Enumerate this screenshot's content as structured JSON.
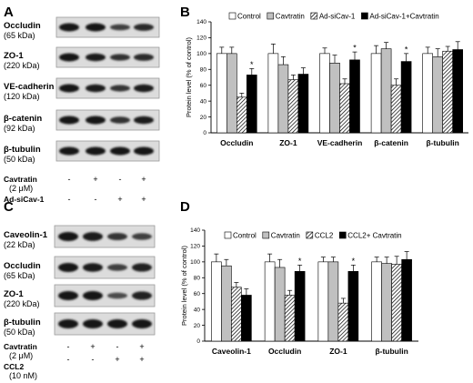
{
  "panels": {
    "A": {
      "label": "A",
      "blots": [
        {
          "name": "Occludin",
          "size": "(65 kDa)",
          "bands": [
            1.0,
            0.98,
            0.6,
            0.8
          ]
        },
        {
          "name": "ZO-1",
          "size": "(220 kDa)",
          "bands": [
            1.0,
            0.9,
            0.72,
            0.78
          ]
        },
        {
          "name": "VE-cadherin",
          "size": "(120 kDa)",
          "bands": [
            1.0,
            0.9,
            0.7,
            0.9
          ]
        },
        {
          "name": "β-catenin",
          "size": "(92 kDa)",
          "bands": [
            1.0,
            1.0,
            0.75,
            0.9
          ]
        },
        {
          "name": "β-tubulin",
          "size": "(50 kDa)",
          "bands": [
            1.0,
            1.0,
            1.0,
            1.0
          ]
        }
      ],
      "treatments": [
        {
          "name": "Cavtratin",
          "sub": "(2 μM)",
          "signs": [
            "-",
            "+",
            "-",
            "+"
          ]
        },
        {
          "name": "Ad-siCav-1",
          "sub": "",
          "signs": [
            "-",
            "-",
            "+",
            "+"
          ]
        }
      ]
    },
    "C": {
      "label": "C",
      "blots": [
        {
          "name": "Caveolin-1",
          "size": "(22 kDa)",
          "bands": [
            1.0,
            0.95,
            0.7,
            0.6
          ]
        },
        {
          "name": "Occludin",
          "size": "(65 kDa)",
          "bands": [
            1.0,
            0.93,
            0.6,
            0.88
          ]
        },
        {
          "name": "ZO-1",
          "size": "(220 kDa)",
          "bands": [
            1.0,
            1.0,
            0.5,
            0.88
          ]
        },
        {
          "name": "β-tubulin",
          "size": "(50 kDa)",
          "bands": [
            1.0,
            1.0,
            1.0,
            1.0
          ]
        }
      ],
      "treatments": [
        {
          "name": "Cavtratin",
          "sub": "(2 μM)",
          "signs": [
            "-",
            "+",
            "-",
            "+"
          ]
        },
        {
          "name": "CCL2",
          "sub": "(10 nM)",
          "signs": [
            "-",
            "-",
            "+",
            "+"
          ]
        }
      ]
    }
  },
  "chart_data": [
    {
      "panel": "B",
      "type": "bar",
      "ylabel": "Protein level (% of control)",
      "ylim": [
        0,
        140
      ],
      "yticks": [
        "0",
        "20",
        "40",
        "60",
        "80",
        "100",
        "120",
        "140"
      ],
      "categories": [
        "Occludin",
        "ZO-1",
        "VE-cadherin",
        "β-catenin",
        "β-tubulin"
      ],
      "legend_position": "top",
      "series": [
        {
          "name": "Control",
          "color": "#ffffff",
          "pattern": "solid",
          "values": [
            100,
            100,
            100,
            100,
            100
          ],
          "errors": [
            8,
            12,
            7,
            10,
            8
          ]
        },
        {
          "name": "Cavtratin",
          "color": "#c0c0c0",
          "pattern": "solid",
          "values": [
            100,
            86,
            88,
            106,
            96
          ],
          "errors": [
            8,
            10,
            10,
            8,
            10
          ]
        },
        {
          "name": "Ad-siCav-1",
          "color": "#ffffff",
          "pattern": "hatch",
          "values": [
            45,
            67,
            62,
            60,
            103
          ],
          "errors": [
            5,
            6,
            6,
            8,
            6
          ]
        },
        {
          "name": "Ad-siCav-1+Cavtratin",
          "color": "#000000",
          "pattern": "solid",
          "values": [
            73,
            74,
            92,
            90,
            105
          ],
          "errors": [
            8,
            8,
            10,
            10,
            10
          ]
        }
      ],
      "annotations": [
        {
          "text": "*",
          "category": "Occludin",
          "series": "Ad-siCav-1+Cavtratin"
        },
        {
          "text": "*",
          "category": "VE-cadherin",
          "series": "Ad-siCav-1+Cavtratin"
        },
        {
          "text": "*",
          "category": "β-catenin",
          "series": "Ad-siCav-1+Cavtratin"
        }
      ]
    },
    {
      "panel": "D",
      "type": "bar",
      "ylabel": "Protein level (% of control)",
      "ylim": [
        0,
        140
      ],
      "yticks": [
        "0",
        "20",
        "40",
        "60",
        "80",
        "100",
        "120",
        "140"
      ],
      "categories": [
        "Caveolin-1",
        "Occludin",
        "ZO-1",
        "β-tubulin"
      ],
      "legend_position": "top",
      "series": [
        {
          "name": "Control",
          "color": "#ffffff",
          "pattern": "solid",
          "values": [
            100,
            100,
            100,
            100
          ],
          "errors": [
            10,
            10,
            6,
            6
          ]
        },
        {
          "name": "Cavtratin",
          "color": "#c0c0c0",
          "pattern": "solid",
          "values": [
            95,
            93,
            100,
            98
          ],
          "errors": [
            8,
            10,
            6,
            8
          ]
        },
        {
          "name": "CCL2",
          "color": "#ffffff",
          "pattern": "hatch",
          "values": [
            68,
            58,
            48,
            97
          ],
          "errors": [
            6,
            6,
            6,
            10
          ]
        },
        {
          "name": "CCL2+ Cavtratin",
          "color": "#000000",
          "pattern": "solid",
          "values": [
            58,
            88,
            88,
            103
          ],
          "errors": [
            8,
            8,
            8,
            10
          ]
        }
      ],
      "annotations": [
        {
          "text": "*",
          "category": "Occludin",
          "series": "CCL2+ Cavtratin"
        },
        {
          "text": "*",
          "category": "ZO-1",
          "series": "CCL2+ Cavtratin"
        }
      ]
    }
  ]
}
